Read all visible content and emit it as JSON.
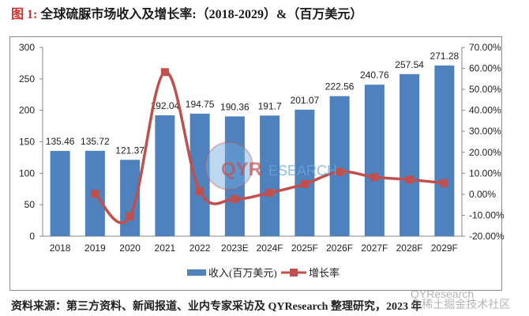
{
  "header": {
    "figure_label": "图 1:",
    "title": "全球硫脲市场收入及增长率:（2018-2029）&（百万美元）"
  },
  "footer": {
    "source": "资料来源：第三方资料、新闻报道、业内专家采访及 QYResearch 整理研究，2023 年"
  },
  "watermark": {
    "logo_text_red": "QYR",
    "logo_text_blue": "ESEARCH",
    "corner_line1": "QYResearch",
    "corner_line2": "@稀土掘金技术社区"
  },
  "colors": {
    "bar": "#4f81bd",
    "line": "#c0504d",
    "axis": "#868686",
    "title_accent": "#d2322d"
  },
  "chart_data": {
    "type": "bar+line",
    "title": "全球硫脲市场收入及增长率:（2018-2029）&（百万美元）",
    "categories": [
      "2018",
      "2019",
      "2020",
      "2021",
      "2022",
      "2023E",
      "2024F",
      "2025F",
      "2026F",
      "2027F",
      "2028F",
      "2029F"
    ],
    "series": [
      {
        "name": "收入(百万美元)",
        "type": "bar",
        "axis": "left",
        "values": [
          135.46,
          135.72,
          121.37,
          192.04,
          194.75,
          190.36,
          191.7,
          201.07,
          222.56,
          240.76,
          257.54,
          271.28
        ],
        "labels": [
          "135.46",
          "135.72",
          "121.37",
          "192.04",
          "194.75",
          "190.36",
          "191.7",
          "201.07",
          "222.56",
          "240.76",
          "257.54",
          "271.28"
        ]
      },
      {
        "name": "增长率",
        "type": "line",
        "axis": "right",
        "values": [
          null,
          0.19,
          -10.57,
          58.23,
          1.41,
          -2.25,
          0.7,
          4.89,
          10.69,
          8.18,
          6.97,
          5.33
        ],
        "unit": "%"
      }
    ],
    "left_axis": {
      "min": 0,
      "max": 300,
      "ticks": [
        "0",
        "50",
        "100",
        "150",
        "200",
        "250",
        "300"
      ]
    },
    "right_axis": {
      "min": -20,
      "max": 70,
      "ticks": [
        "-20.00%",
        "-10.00%",
        "0.00%",
        "10.00%",
        "20.00%",
        "30.00%",
        "40.00%",
        "50.00%",
        "60.00%",
        "70.00%"
      ]
    },
    "xlabel": "",
    "ylabel": "",
    "grid": false,
    "legend": {
      "position": "bottom",
      "entries": [
        "收入(百万美元)",
        "增长率"
      ]
    }
  }
}
